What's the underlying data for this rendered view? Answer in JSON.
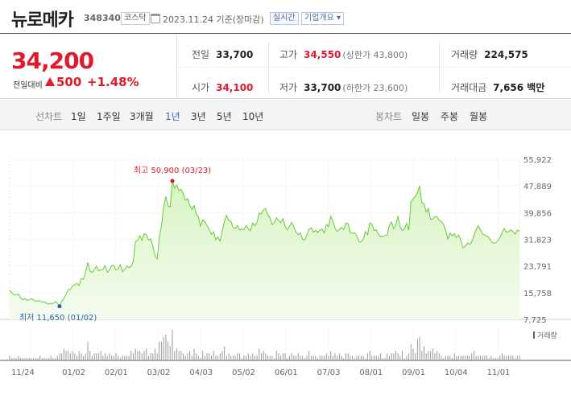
{
  "header": {
    "name": "뉴로메카",
    "code": "348340",
    "market": "코스닥",
    "date_text": "2023.11.24 기준(장마감)",
    "realtime_label": "실시간",
    "overview_label": "기업개요 ▾"
  },
  "quote": {
    "price": "34,200",
    "change_label": "전일대비",
    "change": "500",
    "change_pct": "+1.48%",
    "prev_close_label": "전일",
    "prev_close": "33,700",
    "high_label": "고가",
    "high": "34,550",
    "upper_limit": "(상한가 43,800)",
    "volume_label": "거래량",
    "volume": "224,575",
    "open_label": "시가",
    "open": "34,100",
    "low_label": "저가",
    "low": "33,700",
    "lower_limit": "(하한가 23,600)",
    "value_label": "거래대금",
    "value": "7,656 백만"
  },
  "range_tabs": {
    "label": "선차트",
    "items": [
      "1일",
      "1주일",
      "3개월",
      "1년",
      "3년",
      "5년",
      "10년"
    ],
    "active": "1년"
  },
  "candle_tabs": {
    "label": "봉차트",
    "items": [
      "일봉",
      "주봉",
      "월봉"
    ]
  },
  "colors": {
    "up": "#e2192a",
    "line": "#66cc33",
    "fill_top": "#d7f3c2",
    "fill_bottom": "#f5fcef",
    "low_marker": "#2a5fb5",
    "volume": "#9a9a9a"
  },
  "chart_data": {
    "type": "area",
    "title": "",
    "xlabel": "",
    "ylabel": "",
    "ylim": [
      7725,
      55922
    ],
    "y_ticks": [
      "55,922",
      "47,889",
      "39,856",
      "31,823",
      "23,791",
      "15,758",
      "7,725"
    ],
    "x_ticks": [
      "11/24",
      "01/02",
      "02/01",
      "03/02",
      "04/03",
      "05/02",
      "06/01",
      "07/03",
      "08/01",
      "09/01",
      "10/04",
      "11/01"
    ],
    "high_label": "최고 50,900 (03/23)",
    "low_label": "최저 11,650 (01/02)",
    "volume_legend": "거래량",
    "series": [
      {
        "values": [
          16500,
          15700,
          15200,
          15000,
          15400,
          14200,
          13600,
          14000,
          13500,
          13700,
          13900,
          13600,
          13200,
          13300,
          13400,
          12900,
          13000,
          12600,
          12300,
          12600,
          12400,
          13100,
          12600,
          11650,
          13200,
          14000,
          15300,
          16700,
          16800,
          17700,
          18200,
          18500,
          17900,
          20000,
          19800,
          21900,
          24900,
          22300,
          21800,
          22600,
          23700,
          22400,
          22600,
          22700,
          23900,
          21900,
          22500,
          23900,
          24000,
          22600,
          22900,
          24200,
          22100,
          22700,
          23800,
          23300,
          23700,
          25200,
          31200,
          31500,
          32900,
          31500,
          33500,
          33200,
          31600,
          32000,
          29800,
          26800,
          25900,
          32500,
          36100,
          41500,
          44700,
          41900,
          41600,
          49400,
          47200,
          48200,
          46500,
          46900,
          45600,
          43600,
          44100,
          42200,
          40800,
          42000,
          39500,
          38600,
          35800,
          37700,
          37100,
          36000,
          34800,
          33300,
          34100,
          31700,
          32500,
          31300,
          34400,
          37400,
          39000,
          37500,
          37300,
          35400,
          35100,
          36000,
          34600,
          35000,
          34700,
          36000,
          35000,
          34400,
          36800,
          35900,
          36900,
          39800,
          39400,
          40700,
          41100,
          39200,
          38400,
          36300,
          36800,
          38300,
          37500,
          36800,
          38100,
          35700,
          34700,
          35800,
          36900,
          35600,
          34000,
          33200,
          33800,
          31900,
          31600,
          33100,
          34900,
          35300,
          34000,
          34500,
          33900,
          34600,
          34900,
          33700,
          36300,
          35600,
          38800,
          37300,
          35200,
          34200,
          34800,
          35400,
          34800,
          36700,
          36500,
          33900,
          33600,
          33800,
          33000,
          31100,
          31200,
          31800,
          34200,
          33200,
          36800,
          36400,
          34500,
          34700,
          33300,
          32600,
          32700,
          33000,
          33100,
          36000,
          37100,
          35000,
          36100,
          38900,
          35500,
          34500,
          35000,
          36700,
          34600,
          43200,
          44000,
          44800,
          45900,
          47900,
          42800,
          42600,
          40000,
          41100,
          37800,
          38000,
          38700,
          38600,
          37600,
          37200,
          36300,
          34500,
          31900,
          33700,
          32900,
          33500,
          32300,
          33100,
          31400,
          29300,
          29800,
          30700,
          30300,
          31000,
          32900,
          34700,
          35900,
          34800,
          33300,
          33200,
          32700,
          32400,
          31100,
          30700,
          30800,
          31400,
          32400,
          33900,
          35100,
          34100,
          34100,
          34700,
          34200,
          33400,
          34600,
          34200
        ],
        "volume": [
          2,
          1,
          1,
          1,
          2,
          1,
          1,
          1,
          1,
          1,
          1,
          1,
          1,
          1,
          2,
          1,
          1,
          1,
          1,
          2,
          1,
          1,
          2,
          3,
          3,
          5,
          4,
          4,
          3,
          4,
          3,
          2,
          4,
          3,
          2,
          3,
          8,
          4,
          2,
          3,
          3,
          3,
          4,
          2,
          3,
          2,
          3,
          2,
          2,
          3,
          2,
          1,
          2,
          2,
          2,
          2,
          4,
          3,
          5,
          4,
          4,
          3,
          4,
          5,
          2,
          3,
          3,
          5,
          3,
          8,
          8,
          10,
          11,
          8,
          6,
          13,
          4,
          5,
          4,
          4,
          3,
          2,
          3,
          4,
          2,
          5,
          3,
          2,
          1,
          4,
          2,
          3,
          3,
          2,
          4,
          2,
          2,
          3,
          4,
          6,
          2,
          3,
          2,
          2,
          2,
          3,
          3,
          1,
          2,
          2,
          3,
          2,
          3,
          2,
          2,
          5,
          3,
          4,
          3,
          2,
          2,
          2,
          1,
          4,
          3,
          2,
          3,
          3,
          1,
          2,
          3,
          2,
          2,
          3,
          2,
          2,
          1,
          2,
          4,
          2,
          2,
          2,
          1,
          2,
          2,
          2,
          3,
          2,
          4,
          2,
          3,
          2,
          3,
          2,
          1,
          3,
          3,
          2,
          2,
          1,
          2,
          2,
          2,
          2,
          1,
          3,
          4,
          2,
          2,
          2,
          2,
          3,
          1,
          1,
          3,
          2,
          3,
          3,
          4,
          3,
          2,
          4,
          1,
          2,
          3,
          7,
          5,
          3,
          9,
          10,
          4,
          6,
          3,
          4,
          4,
          5,
          3,
          4,
          3,
          2,
          1,
          2,
          2,
          2,
          1,
          3,
          2,
          2,
          2,
          2,
          2,
          2,
          2,
          3,
          4,
          2,
          2,
          2,
          2,
          2,
          2,
          1,
          2,
          1,
          1,
          1,
          2,
          3,
          2,
          2,
          2,
          2,
          2,
          1,
          2,
          2
        ]
      }
    ]
  }
}
